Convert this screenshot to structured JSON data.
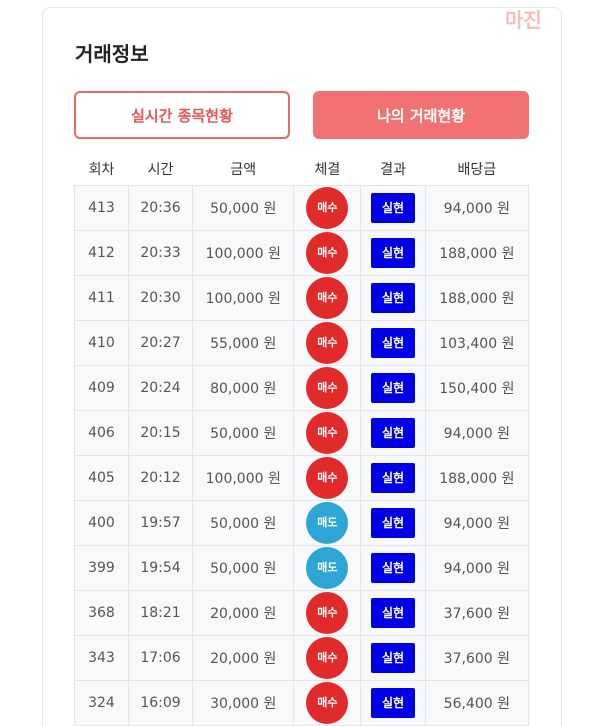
{
  "watermark": "마진",
  "header": {
    "title": "거래정보"
  },
  "tabs": [
    "실시간 종목현황",
    "나의 거래현황"
  ],
  "table": {
    "columns": [
      "회차",
      "시간",
      "금액",
      "체결",
      "결과",
      "배당금"
    ],
    "rows": [
      [
        "413",
        "20:36",
        "50,000 원",
        "매수",
        "실현",
        "94,000 원"
      ],
      [
        "412",
        "20:33",
        "100,000 원",
        "매수",
        "실현",
        "188,000 원"
      ],
      [
        "411",
        "20:30",
        "100,000 원",
        "매수",
        "실현",
        "188,000 원"
      ],
      [
        "410",
        "20:27",
        "55,000 원",
        "매수",
        "실현",
        "103,400 원"
      ],
      [
        "409",
        "20:24",
        "80,000 원",
        "매수",
        "실현",
        "150,400 원"
      ],
      [
        "406",
        "20:15",
        "50,000 원",
        "매수",
        "실현",
        "94,000 원"
      ],
      [
        "405",
        "20:12",
        "100,000 원",
        "매수",
        "실현",
        "188,000 원"
      ],
      [
        "400",
        "19:57",
        "50,000 원",
        "매도",
        "실현",
        "94,000 원"
      ],
      [
        "399",
        "19:54",
        "50,000 원",
        "매도",
        "실현",
        "94,000 원"
      ],
      [
        "368",
        "18:21",
        "20,000 원",
        "매수",
        "실현",
        "37,600 원"
      ],
      [
        "343",
        "17:06",
        "20,000 원",
        "매수",
        "실현",
        "37,600 원"
      ],
      [
        "324",
        "16:09",
        "30,000 원",
        "매수",
        "실현",
        "56,400 원"
      ]
    ]
  }
}
